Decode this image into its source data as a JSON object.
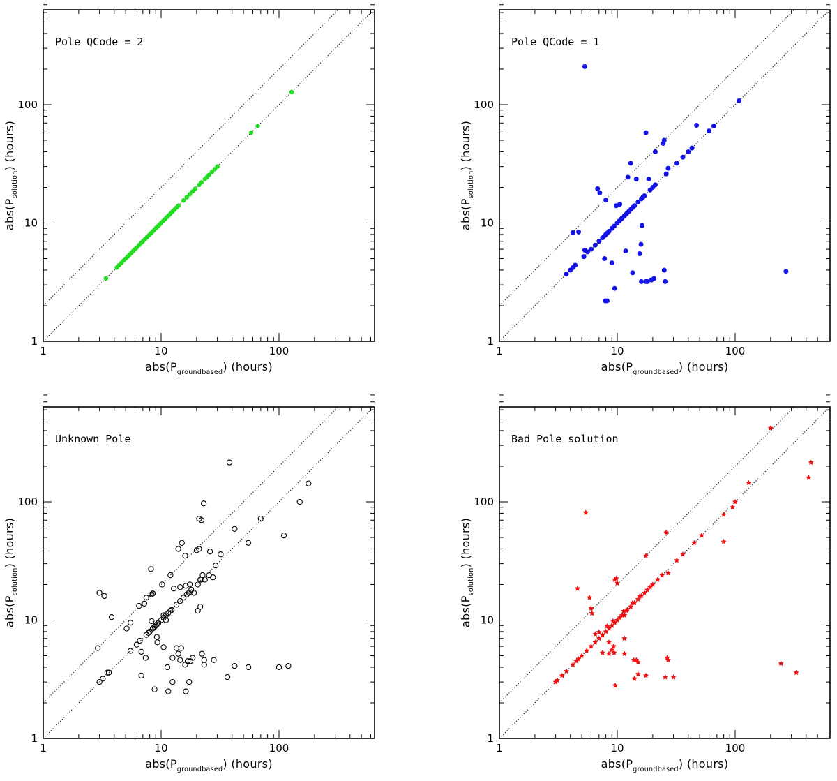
{
  "chart_data": [
    {
      "type": "scatter",
      "title": "Pole QCode = 2",
      "xlabel": {
        "prefix": "abs(P",
        "sub": "groundbased",
        "suffix": ")  (hours)"
      },
      "ylabel": {
        "prefix": "abs(P",
        "sub": "solution",
        "suffix": ")  (hours)"
      },
      "xscale": "log",
      "yscale": "log",
      "xlim": [
        1,
        600
      ],
      "ylim": [
        1,
        800
      ],
      "xtick_labels": [
        "1",
        "10",
        "100"
      ],
      "ytick_labels": [
        "1",
        "10",
        "100"
      ],
      "reference_lines": [
        "y = x",
        "y = 2x"
      ],
      "marker": "filled-circle-small",
      "color": "#22dd22",
      "points": [
        [
          3.4,
          3.4
        ],
        [
          4.2,
          4.2
        ],
        [
          4.4,
          4.4
        ],
        [
          4.6,
          4.6
        ],
        [
          4.8,
          4.8
        ],
        [
          5.0,
          5.0
        ],
        [
          5.2,
          5.2
        ],
        [
          5.4,
          5.4
        ],
        [
          5.6,
          5.6
        ],
        [
          5.8,
          5.8
        ],
        [
          6.0,
          6.0
        ],
        [
          6.2,
          6.2
        ],
        [
          6.5,
          6.5
        ],
        [
          6.8,
          6.8
        ],
        [
          7.0,
          7.0
        ],
        [
          7.3,
          7.3
        ],
        [
          7.6,
          7.6
        ],
        [
          7.9,
          7.9
        ],
        [
          8.2,
          8.2
        ],
        [
          8.5,
          8.5
        ],
        [
          8.8,
          8.8
        ],
        [
          9.1,
          9.1
        ],
        [
          9.4,
          9.4
        ],
        [
          9.7,
          9.7
        ],
        [
          10.0,
          10.0
        ],
        [
          10.4,
          10.4
        ],
        [
          10.8,
          10.8
        ],
        [
          11.2,
          11.2
        ],
        [
          11.6,
          11.6
        ],
        [
          12.0,
          12.0
        ],
        [
          12.5,
          12.5
        ],
        [
          13.0,
          13.0
        ],
        [
          13.5,
          13.5
        ],
        [
          14.0,
          14.0
        ],
        [
          15.5,
          15.5
        ],
        [
          16.5,
          16.5
        ],
        [
          17.5,
          17.5
        ],
        [
          18.5,
          18.5
        ],
        [
          19.5,
          19.5
        ],
        [
          21.0,
          21.0
        ],
        [
          22.0,
          22.0
        ],
        [
          23.5,
          23.5
        ],
        [
          24.5,
          24.5
        ],
        [
          25.5,
          25.5
        ],
        [
          27.0,
          27.0
        ],
        [
          28.5,
          28.5
        ],
        [
          30.0,
          30.0
        ],
        [
          58.0,
          58.0
        ],
        [
          66.0,
          66.0
        ],
        [
          128.0,
          128.0
        ]
      ]
    },
    {
      "type": "scatter",
      "title": "Pole QCode = 1",
      "xlabel": {
        "prefix": "abs(P",
        "sub": "groundbased",
        "suffix": ")  (hours)"
      },
      "ylabel": {
        "prefix": "abs(P",
        "sub": "solution",
        "suffix": ")  (hours)"
      },
      "xscale": "log",
      "yscale": "log",
      "xlim": [
        1,
        600
      ],
      "ylim": [
        1,
        800
      ],
      "xtick_labels": [
        "1",
        "10",
        "100"
      ],
      "ytick_labels": [
        "1",
        "10",
        "100"
      ],
      "reference_lines": [
        "y = x",
        "y = 2x"
      ],
      "marker": "filled-circle",
      "color": "#1414e6",
      "points": [
        [
          5.3,
          210
        ],
        [
          3.7,
          3.7
        ],
        [
          4.0,
          4.0
        ],
        [
          4.2,
          4.2
        ],
        [
          4.4,
          4.4
        ],
        [
          4.2,
          8.3
        ],
        [
          4.7,
          8.4
        ],
        [
          5.2,
          5.2
        ],
        [
          5.3,
          5.9
        ],
        [
          5.6,
          5.7
        ],
        [
          6.0,
          6.0
        ],
        [
          6.5,
          6.5
        ],
        [
          6.8,
          19.5
        ],
        [
          7.1,
          18.0
        ],
        [
          7.0,
          7.0
        ],
        [
          7.5,
          7.5
        ],
        [
          7.8,
          7.8
        ],
        [
          7.8,
          5.0
        ],
        [
          8.0,
          8.0
        ],
        [
          8.2,
          8.2
        ],
        [
          8.5,
          8.5
        ],
        [
          8.0,
          15.6
        ],
        [
          7.9,
          2.2
        ],
        [
          8.2,
          2.2
        ],
        [
          8.5,
          8.5
        ],
        [
          9.0,
          4.6
        ],
        [
          9.0,
          9.0
        ],
        [
          9.4,
          9.4
        ],
        [
          9.5,
          2.8
        ],
        [
          9.8,
          14.0
        ],
        [
          10.0,
          10.0
        ],
        [
          10.4,
          10.4
        ],
        [
          10.8,
          10.8
        ],
        [
          10.5,
          14.4
        ],
        [
          11.0,
          11.0
        ],
        [
          11.5,
          11.5
        ],
        [
          11.8,
          5.8
        ],
        [
          12.0,
          12.0
        ],
        [
          12.5,
          12.5
        ],
        [
          12.3,
          24.4
        ],
        [
          13.0,
          32.0
        ],
        [
          13.0,
          13.0
        ],
        [
          13.5,
          13.5
        ],
        [
          14.0,
          14.0
        ],
        [
          13.5,
          3.8
        ],
        [
          14.5,
          23.5
        ],
        [
          15.0,
          15.0
        ],
        [
          15.5,
          5.5
        ],
        [
          16.0,
          16.0
        ],
        [
          16.5,
          16.5
        ],
        [
          15.9,
          6.6
        ],
        [
          16.2,
          9.5
        ],
        [
          16.0,
          3.2
        ],
        [
          17.0,
          17.0
        ],
        [
          17.5,
          3.2
        ],
        [
          17.5,
          58.0
        ],
        [
          18.0,
          3.2
        ],
        [
          18.5,
          23.5
        ],
        [
          19.0,
          19.0
        ],
        [
          19.5,
          3.3
        ],
        [
          20.0,
          20.0
        ],
        [
          20.5,
          3.4
        ],
        [
          21.0,
          40.0
        ],
        [
          21.0,
          21.0
        ],
        [
          24.5,
          47.0
        ],
        [
          25.0,
          50.0
        ],
        [
          25.0,
          4.0
        ],
        [
          25.5,
          3.2
        ],
        [
          26.0,
          26.0
        ],
        [
          27.0,
          29.0
        ],
        [
          32.0,
          32.0
        ],
        [
          36.0,
          36.0
        ],
        [
          40.0,
          40.0
        ],
        [
          43.0,
          43.0
        ],
        [
          47.0,
          67.0
        ],
        [
          60.0,
          60.0
        ],
        [
          66.0,
          66.0
        ],
        [
          108.0,
          108.0
        ],
        [
          270.0,
          3.9
        ]
      ]
    },
    {
      "type": "scatter",
      "title": "Unknown Pole",
      "xlabel": {
        "prefix": "abs(P",
        "sub": "groundbased",
        "suffix": ")  (hours)"
      },
      "ylabel": {
        "prefix": "abs(P",
        "sub": "solution",
        "suffix": ")  (hours)"
      },
      "xscale": "log",
      "yscale": "log",
      "xlim": [
        1,
        600
      ],
      "ylim": [
        1,
        800
      ],
      "xtick_labels": [
        "1",
        "10",
        "100"
      ],
      "ytick_labels": [
        "1",
        "10",
        "100"
      ],
      "reference_lines": [
        "y = x",
        "y = 2x"
      ],
      "marker": "open-circle",
      "color": "#000000",
      "points": [
        [
          38,
          215
        ],
        [
          23,
          97
        ],
        [
          21,
          72
        ],
        [
          22,
          70
        ],
        [
          15,
          45
        ],
        [
          14,
          40
        ],
        [
          16,
          35
        ],
        [
          20,
          39
        ],
        [
          21,
          40
        ],
        [
          26,
          38
        ],
        [
          32,
          36
        ],
        [
          42,
          59
        ],
        [
          55,
          45
        ],
        [
          70,
          72
        ],
        [
          110,
          52
        ],
        [
          150,
          100
        ],
        [
          178,
          143
        ],
        [
          3,
          17
        ],
        [
          3.3,
          16
        ],
        [
          3.8,
          10.6
        ],
        [
          2.9,
          5.8
        ],
        [
          3,
          3
        ],
        [
          3.2,
          3.2
        ],
        [
          3.5,
          3.6
        ],
        [
          3.6,
          3.6
        ],
        [
          5.1,
          8.5
        ],
        [
          5.5,
          9.5
        ],
        [
          5.5,
          5.5
        ],
        [
          6.2,
          6.2
        ],
        [
          6.6,
          6.7
        ],
        [
          6.5,
          13.2
        ],
        [
          7.2,
          13.8
        ],
        [
          7.5,
          15.5
        ],
        [
          8.3,
          16.5
        ],
        [
          8.5,
          16.8
        ],
        [
          8.2,
          27
        ],
        [
          6.8,
          3.4
        ],
        [
          7.4,
          4.8
        ],
        [
          6.8,
          5.4
        ],
        [
          7.5,
          7.5
        ],
        [
          7.8,
          7.8
        ],
        [
          8.0,
          8.0
        ],
        [
          8.5,
          8.5
        ],
        [
          8.8,
          8.8
        ],
        [
          9.0,
          9.0
        ],
        [
          9.2,
          9.2
        ],
        [
          9.5,
          9.5
        ],
        [
          10.0,
          10.0
        ],
        [
          10.5,
          10.5
        ],
        [
          11.0,
          11.0
        ],
        [
          11.5,
          11.5
        ],
        [
          12.0,
          12.0
        ],
        [
          8.3,
          9.8
        ],
        [
          9.2,
          7.2
        ],
        [
          9.3,
          6.5
        ],
        [
          8.8,
          2.6
        ],
        [
          10.2,
          20
        ],
        [
          10.5,
          5.9
        ],
        [
          11.3,
          4
        ],
        [
          11.5,
          2.5
        ],
        [
          12.5,
          4.8
        ],
        [
          12,
          24
        ],
        [
          12.5,
          3
        ],
        [
          13.5,
          5.8
        ],
        [
          14,
          5.2
        ],
        [
          14.5,
          4.6
        ],
        [
          14.8,
          5.8
        ],
        [
          16,
          4.2
        ],
        [
          16.8,
          4.5
        ],
        [
          17.3,
          3
        ],
        [
          16.2,
          2.5
        ],
        [
          17.7,
          4.5
        ],
        [
          18.5,
          4.8
        ],
        [
          22.2,
          5.2
        ],
        [
          23.2,
          4.6
        ],
        [
          23.2,
          4.2
        ],
        [
          28,
          4.6
        ],
        [
          36.5,
          3.3
        ],
        [
          42,
          4.1
        ],
        [
          55,
          4
        ],
        [
          100,
          4
        ],
        [
          120,
          4.1
        ],
        [
          20.5,
          12
        ],
        [
          21.5,
          13
        ],
        [
          21.5,
          22
        ],
        [
          22.5,
          24
        ],
        [
          23.5,
          22
        ],
        [
          25.5,
          24
        ],
        [
          27.5,
          23
        ],
        [
          29,
          29
        ],
        [
          13.5,
          13.5
        ],
        [
          14.5,
          14.5
        ],
        [
          15.5,
          15.5
        ],
        [
          16.5,
          16.5
        ],
        [
          17.2,
          17
        ],
        [
          18,
          18
        ],
        [
          19,
          17
        ],
        [
          20.5,
          20
        ],
        [
          22,
          22
        ],
        [
          14.5,
          19
        ],
        [
          16.2,
          19.5
        ],
        [
          17.5,
          20
        ],
        [
          12.3,
          12.2
        ],
        [
          12.8,
          18.5
        ],
        [
          10.5,
          11
        ],
        [
          11,
          10
        ]
      ]
    },
    {
      "type": "scatter",
      "title": "Bad Pole solution",
      "xlabel": {
        "prefix": "abs(P",
        "sub": "groundbased",
        "suffix": ")  (hours)"
      },
      "ylabel": {
        "prefix": "abs(P",
        "sub": "solution",
        "suffix": ")  (hours)"
      },
      "xscale": "log",
      "yscale": "log",
      "xlim": [
        1,
        600
      ],
      "ylim": [
        1,
        800
      ],
      "xtick_labels": [
        "1",
        "10",
        "100"
      ],
      "ytick_labels": [
        "1",
        "10",
        "100"
      ],
      "reference_lines": [
        "y = x",
        "y = 2x"
      ],
      "marker": "filled-star",
      "color": "#ee1111",
      "points": [
        [
          200,
          420
        ],
        [
          440,
          215
        ],
        [
          420,
          160
        ],
        [
          5.4,
          81
        ],
        [
          130,
          145
        ],
        [
          100,
          100
        ],
        [
          95,
          90
        ],
        [
          80,
          78
        ],
        [
          80,
          46
        ],
        [
          52,
          52
        ],
        [
          45,
          45
        ],
        [
          36,
          36
        ],
        [
          32,
          32
        ],
        [
          26,
          55
        ],
        [
          27,
          25
        ],
        [
          24,
          24
        ],
        [
          22,
          22
        ],
        [
          20,
          20
        ],
        [
          19,
          19
        ],
        [
          18,
          18
        ],
        [
          17.5,
          35
        ],
        [
          17,
          17
        ],
        [
          16,
          16
        ],
        [
          15,
          15
        ],
        [
          14,
          14
        ],
        [
          13,
          13
        ],
        [
          12,
          12
        ],
        [
          11.5,
          11
        ],
        [
          11,
          11
        ],
        [
          10.5,
          10.5
        ],
        [
          10,
          10
        ],
        [
          9.5,
          9.5
        ],
        [
          9,
          9
        ],
        [
          8.5,
          8.5
        ],
        [
          8,
          8
        ],
        [
          7.5,
          7.5
        ],
        [
          7,
          7
        ],
        [
          6.5,
          6.5
        ],
        [
          6,
          6
        ],
        [
          5.5,
          5.5
        ],
        [
          5,
          5
        ],
        [
          4.7,
          4.7
        ],
        [
          4.5,
          4.5
        ],
        [
          4.2,
          4.2
        ],
        [
          3.7,
          3.7
        ],
        [
          3.4,
          3.4
        ],
        [
          3.1,
          3.1
        ],
        [
          3,
          3
        ],
        [
          4.6,
          18.5
        ],
        [
          5.8,
          15.5
        ],
        [
          6,
          12.6
        ],
        [
          6.1,
          11.4
        ],
        [
          9.5,
          22
        ],
        [
          9.8,
          22.5
        ],
        [
          10,
          20.5
        ],
        [
          13.5,
          14
        ],
        [
          6.5,
          7.6
        ],
        [
          7,
          7.9
        ],
        [
          7.5,
          5.3
        ],
        [
          8.5,
          5.2
        ],
        [
          9,
          5.6
        ],
        [
          9.3,
          6
        ],
        [
          9.4,
          5.3
        ],
        [
          8.5,
          6.5
        ],
        [
          11.5,
          5.2
        ],
        [
          11.5,
          7
        ],
        [
          13.8,
          4.6
        ],
        [
          14.5,
          4.6
        ],
        [
          14,
          3.2
        ],
        [
          15,
          3.5
        ],
        [
          15,
          4.4
        ],
        [
          17.5,
          3.4
        ],
        [
          25.5,
          3.3
        ],
        [
          27,
          4.6
        ],
        [
          26.5,
          4.8
        ],
        [
          30,
          3.3
        ],
        [
          9.6,
          2.8
        ],
        [
          11.3,
          11.9
        ],
        [
          12.2,
          12.3
        ],
        [
          9.2,
          9.8
        ],
        [
          8.2,
          8.9
        ],
        [
          15.5,
          15.9
        ],
        [
          245,
          4.3
        ],
        [
          330,
          3.6
        ]
      ]
    }
  ]
}
